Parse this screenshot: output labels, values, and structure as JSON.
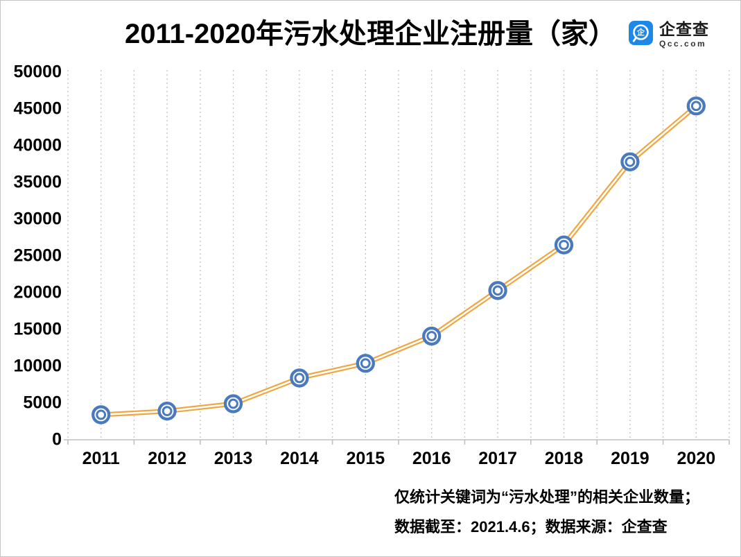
{
  "title": "2011-2020年污水处理企业注册量（家）",
  "logo": {
    "name": "企查查",
    "domain": "Qcc.com",
    "glyph": "企",
    "brand_color": "#1E88E8"
  },
  "footer": {
    "line1": "仅统计关键词为“污水处理”的相关企业数量；",
    "line2": "数据截至：2021.4.6；数据来源：企查查"
  },
  "chart_data": {
    "type": "line",
    "title": "2011-2020年污水处理企业注册量（家）",
    "categories": [
      "2011",
      "2012",
      "2013",
      "2014",
      "2015",
      "2016",
      "2017",
      "2018",
      "2019",
      "2020"
    ],
    "values": [
      3400,
      3900,
      4900,
      8400,
      10400,
      14100,
      20300,
      26500,
      37800,
      45400
    ],
    "xlabel": "",
    "ylabel": "",
    "ylim": [
      0,
      50000
    ],
    "ytick_interval": 5000,
    "grid": "vertical-dotted-half-category",
    "legend": "none",
    "line_style": "double",
    "marker": "double-ring-circle",
    "colors": {
      "line": "#F0A53E",
      "marker": "#4A7ABE",
      "grid": "#C6C6C6",
      "axis": "#BFBFBF",
      "text": "#000000"
    }
  }
}
